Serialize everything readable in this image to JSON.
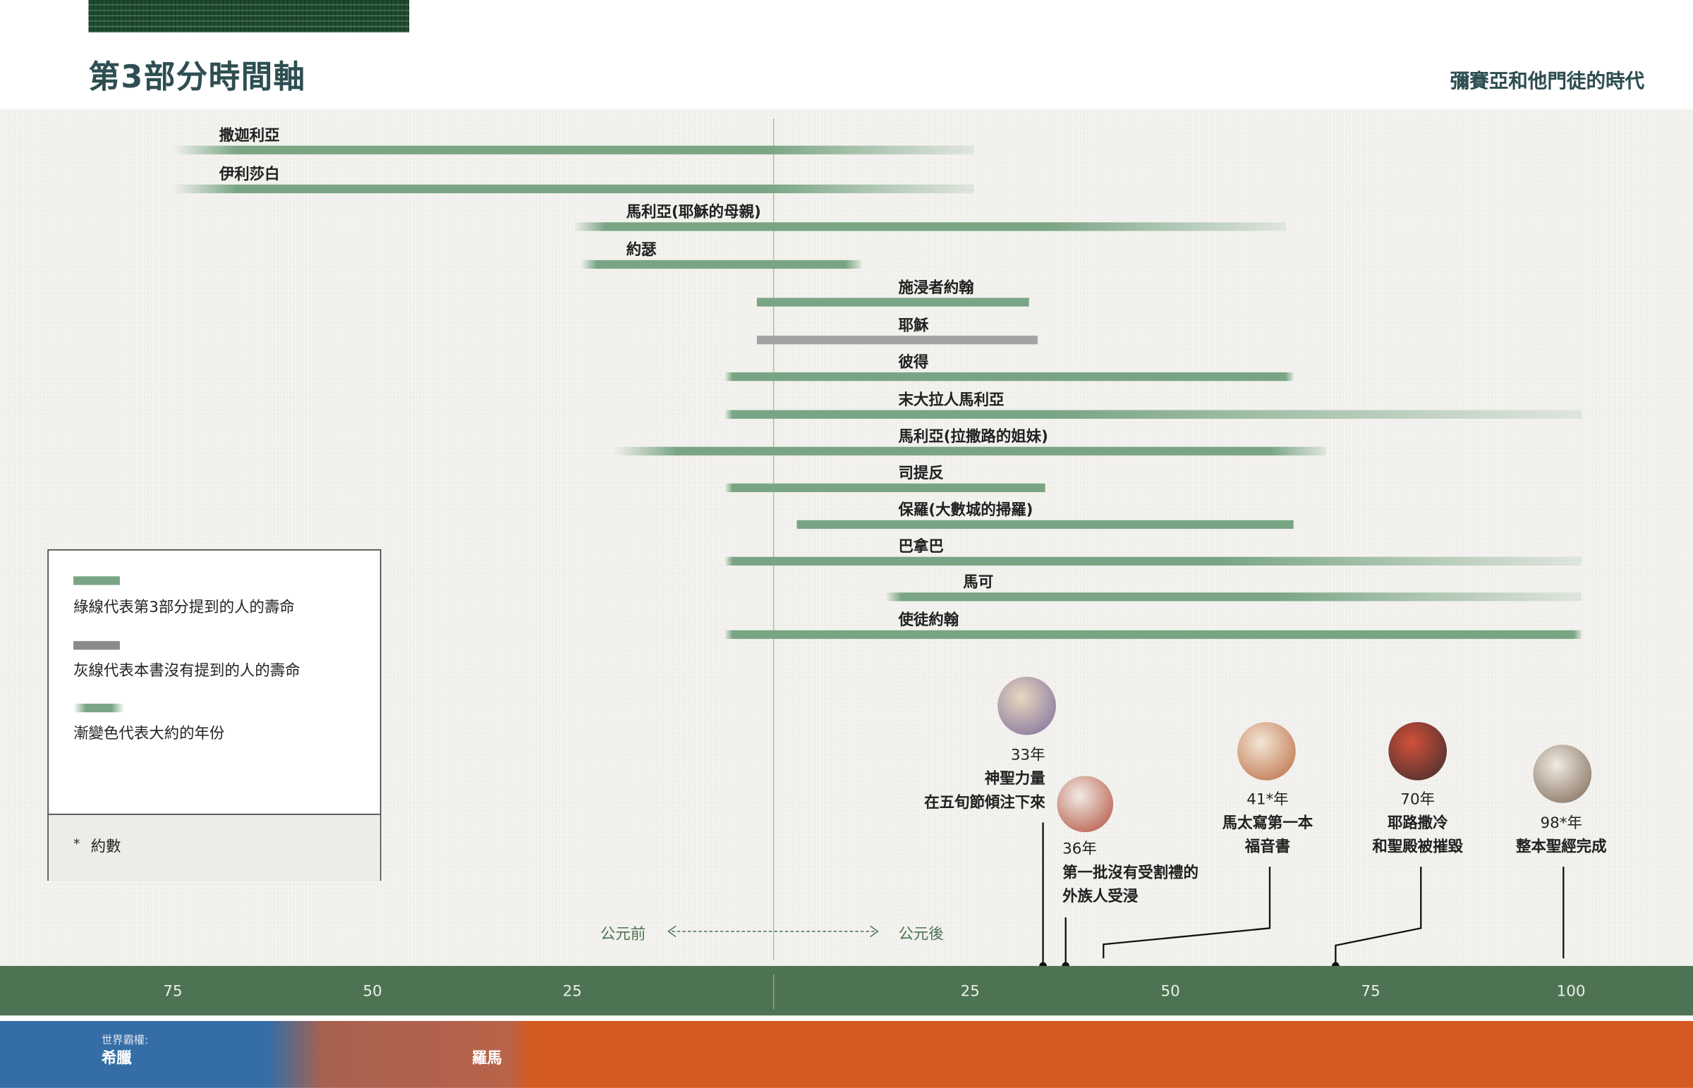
{
  "header": {
    "title": "第3部分時間軸",
    "subtitle": "彌賽亞和他門徒的時代"
  },
  "colors": {
    "green_bar": "#79a584",
    "grey_bar": "#a3a3a3",
    "axis": "#4e7352",
    "greece": "#356ea6",
    "rome": "#d35a21"
  },
  "chart_data": {
    "type": "timeline",
    "x_unit": "year",
    "xlim": [
      -75,
      105
    ],
    "ticks": [
      {
        "year": -75,
        "label": "75"
      },
      {
        "year": -50,
        "label": "50"
      },
      {
        "year": -25,
        "label": "25"
      },
      {
        "year": 25,
        "label": "25"
      },
      {
        "year": 50,
        "label": "50"
      },
      {
        "year": 75,
        "label": "75"
      },
      {
        "year": 100,
        "label": "100"
      }
    ],
    "era_labels": {
      "before": "公元前",
      "after": "公元後"
    },
    "lifespans": [
      {
        "name": "撒迦利亞",
        "start": -75,
        "solid_start": -67,
        "solid_end": -1,
        "end": 25,
        "color": "green"
      },
      {
        "name": "伊利莎白",
        "start": -75,
        "solid_start": -67,
        "solid_end": -1,
        "end": 25,
        "color": "green"
      },
      {
        "name": "馬利亞(耶穌的母親)",
        "start": -25,
        "solid_start": -21,
        "solid_end": 34,
        "end": 64,
        "color": "green"
      },
      {
        "name": "約瑟",
        "start": -24,
        "solid_start": -22,
        "solid_end": 9,
        "end": 11,
        "color": "green"
      },
      {
        "name": "施浸者約翰",
        "start": -2,
        "solid_start": -2,
        "solid_end": 32,
        "end": 32,
        "color": "green"
      },
      {
        "name": "耶穌",
        "start": -2,
        "solid_start": -2,
        "solid_end": 33,
        "end": 33,
        "color": "grey"
      },
      {
        "name": "彼得",
        "start": -6,
        "solid_start": -5,
        "solid_end": 64,
        "end": 65,
        "color": "green"
      },
      {
        "name": "末大拉人馬利亞",
        "start": -6,
        "solid_start": -5,
        "solid_end": 35,
        "end": 101,
        "color": "green"
      },
      {
        "name": "馬利亞(拉撒路的姐妹)",
        "start": -20,
        "solid_start": -12,
        "solid_end": 62,
        "end": 69,
        "color": "green"
      },
      {
        "name": "司提反",
        "start": -6,
        "solid_start": -5,
        "solid_end": 34,
        "end": 34,
        "color": "green"
      },
      {
        "name": "保羅(大數城的掃羅)",
        "start": 3,
        "solid_start": 3,
        "solid_end": 65,
        "end": 65,
        "color": "green"
      },
      {
        "name": "巴拿巴",
        "start": -6,
        "solid_start": -5,
        "solid_end": 56,
        "end": 101,
        "color": "green"
      },
      {
        "name": "馬可",
        "start": 14,
        "solid_start": 16,
        "solid_end": 62,
        "end": 101,
        "color": "green"
      },
      {
        "name": "使徒約翰",
        "start": -6,
        "solid_start": -5,
        "solid_end": 100,
        "end": 101,
        "color": "green"
      }
    ],
    "events": [
      {
        "year": 33,
        "date": "33年",
        "lines": [
          "神聖力量",
          "在五旬節傾注下來"
        ],
        "photo": "holy-spirit-pentecost"
      },
      {
        "year": 36,
        "date": "36年",
        "lines": [
          "第一批沒有受割禮的",
          "外族人受浸"
        ],
        "photo": "cornelius-peter"
      },
      {
        "year": 41,
        "date": "41*年",
        "lines": [
          "馬太寫第一本",
          "福音書"
        ],
        "photo": "writing-scroll"
      },
      {
        "year": 70,
        "date": "70年",
        "lines": [
          "耶路撒冷",
          "和聖殿被摧毀"
        ],
        "photo": "jerusalem-burning"
      },
      {
        "year": 98,
        "date": "98*年",
        "lines": [
          "整本聖經完成"
        ],
        "photo": "john-writing"
      }
    ]
  },
  "legend": {
    "green": "綠線代表第3部分提到的人的壽命",
    "grey": "灰線代表本書沒有提到的人的壽命",
    "fade": "漸變色代表大約的年份",
    "note_symbol": "*",
    "note": "約數"
  },
  "world_powers": {
    "label": "世界霸權:",
    "greece": "希臘",
    "rome": "羅馬"
  }
}
